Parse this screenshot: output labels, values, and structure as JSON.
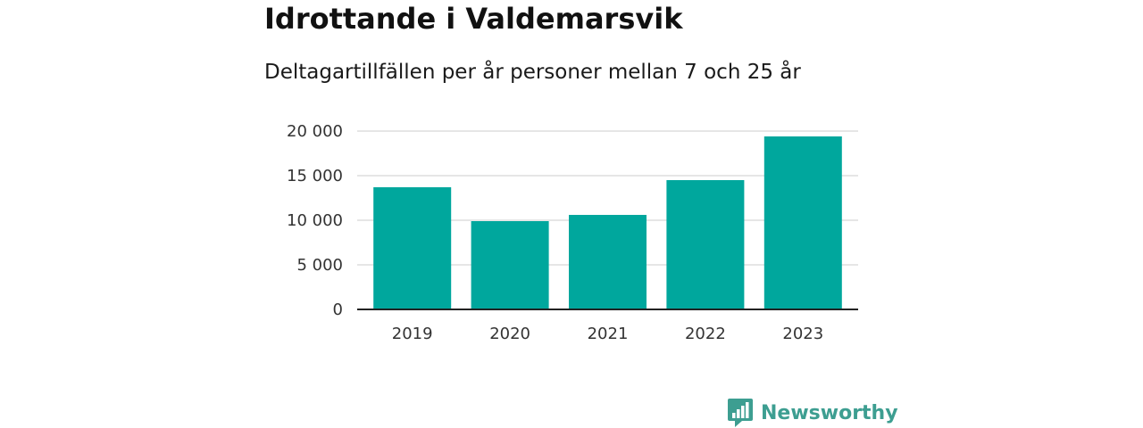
{
  "title": "Idrottande i Valdemarsvik",
  "subtitle": "Deltagartillfällen per år personer mellan 7 och 25 år",
  "brand": {
    "name": "Newsworthy",
    "icon": "newsworthy-logo-icon",
    "color": "#3d9e91"
  },
  "chart_data": {
    "type": "bar",
    "categories": [
      "2019",
      "2020",
      "2021",
      "2022",
      "2023"
    ],
    "values": [
      13700,
      9900,
      10600,
      14500,
      19400
    ],
    "ylim": [
      0,
      20000
    ],
    "yticks": [
      0,
      5000,
      10000,
      15000,
      20000
    ],
    "ytick_labels": [
      "0",
      "5 000",
      "10 000",
      "15 000",
      "20 000"
    ],
    "grid": true,
    "bar_color": "#00a79d",
    "xlabel": "",
    "ylabel": ""
  }
}
